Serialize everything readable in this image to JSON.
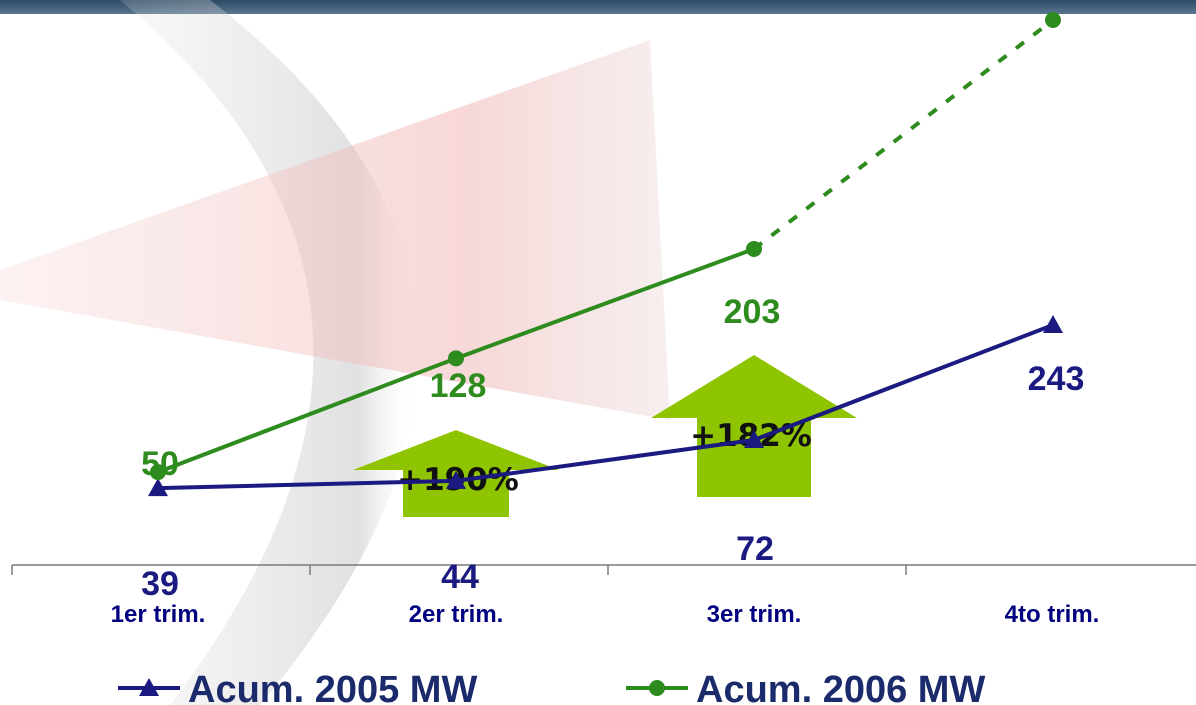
{
  "chart_data": {
    "type": "line",
    "categories": [
      "1er trim.",
      "2er trim.",
      "3er trim.",
      "4to trim."
    ],
    "series": [
      {
        "name": "Acum. 2005 MW",
        "values": [
          39,
          44,
          72,
          243
        ],
        "labels": [
          "39",
          "44",
          "72",
          "243"
        ],
        "color": "#1a1a80",
        "marker": "triangle"
      },
      {
        "name": "Acum. 2006 MW",
        "values": [
          50,
          128,
          203,
          360
        ],
        "labels": [
          "50",
          "128",
          "203",
          ""
        ],
        "color": "#2e8b1e",
        "marker": "circle",
        "projected_from_index": 2
      }
    ],
    "annotations": [
      {
        "text": "+190%",
        "category_index": 1
      },
      {
        "text": "+182%",
        "category_index": 2
      }
    ],
    "ylim": [
      0,
      360
    ],
    "arrow_color": "#8fc400",
    "legend_position": "bottom",
    "grid": false
  }
}
